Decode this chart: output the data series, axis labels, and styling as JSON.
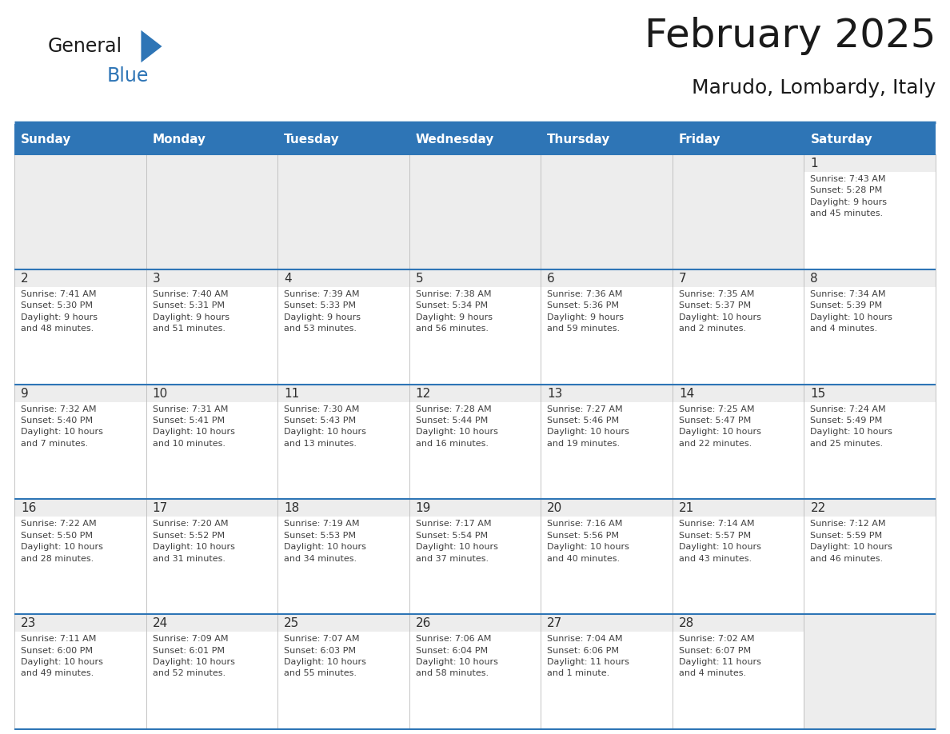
{
  "title": "February 2025",
  "subtitle": "Marudo, Lombardy, Italy",
  "days_of_week": [
    "Sunday",
    "Monday",
    "Tuesday",
    "Wednesday",
    "Thursday",
    "Friday",
    "Saturday"
  ],
  "header_bg": "#2E75B6",
  "header_text": "#FFFFFF",
  "cell_bg_white": "#FFFFFF",
  "cell_bg_gray": "#EDEDED",
  "border_color": "#2E75B6",
  "day_num_color": "#2E2E2E",
  "cell_text_color": "#404040",
  "title_color": "#1A1A1A",
  "subtitle_color": "#1A1A1A",
  "logo_color1": "#1A1A1A",
  "logo_color2": "#2E75B6",
  "logo_triangle_color": "#2E75B6",
  "calendar_data": [
    [
      {
        "day": null,
        "info": ""
      },
      {
        "day": null,
        "info": ""
      },
      {
        "day": null,
        "info": ""
      },
      {
        "day": null,
        "info": ""
      },
      {
        "day": null,
        "info": ""
      },
      {
        "day": null,
        "info": ""
      },
      {
        "day": 1,
        "info": "Sunrise: 7:43 AM\nSunset: 5:28 PM\nDaylight: 9 hours\nand 45 minutes."
      }
    ],
    [
      {
        "day": 2,
        "info": "Sunrise: 7:41 AM\nSunset: 5:30 PM\nDaylight: 9 hours\nand 48 minutes."
      },
      {
        "day": 3,
        "info": "Sunrise: 7:40 AM\nSunset: 5:31 PM\nDaylight: 9 hours\nand 51 minutes."
      },
      {
        "day": 4,
        "info": "Sunrise: 7:39 AM\nSunset: 5:33 PM\nDaylight: 9 hours\nand 53 minutes."
      },
      {
        "day": 5,
        "info": "Sunrise: 7:38 AM\nSunset: 5:34 PM\nDaylight: 9 hours\nand 56 minutes."
      },
      {
        "day": 6,
        "info": "Sunrise: 7:36 AM\nSunset: 5:36 PM\nDaylight: 9 hours\nand 59 minutes."
      },
      {
        "day": 7,
        "info": "Sunrise: 7:35 AM\nSunset: 5:37 PM\nDaylight: 10 hours\nand 2 minutes."
      },
      {
        "day": 8,
        "info": "Sunrise: 7:34 AM\nSunset: 5:39 PM\nDaylight: 10 hours\nand 4 minutes."
      }
    ],
    [
      {
        "day": 9,
        "info": "Sunrise: 7:32 AM\nSunset: 5:40 PM\nDaylight: 10 hours\nand 7 minutes."
      },
      {
        "day": 10,
        "info": "Sunrise: 7:31 AM\nSunset: 5:41 PM\nDaylight: 10 hours\nand 10 minutes."
      },
      {
        "day": 11,
        "info": "Sunrise: 7:30 AM\nSunset: 5:43 PM\nDaylight: 10 hours\nand 13 minutes."
      },
      {
        "day": 12,
        "info": "Sunrise: 7:28 AM\nSunset: 5:44 PM\nDaylight: 10 hours\nand 16 minutes."
      },
      {
        "day": 13,
        "info": "Sunrise: 7:27 AM\nSunset: 5:46 PM\nDaylight: 10 hours\nand 19 minutes."
      },
      {
        "day": 14,
        "info": "Sunrise: 7:25 AM\nSunset: 5:47 PM\nDaylight: 10 hours\nand 22 minutes."
      },
      {
        "day": 15,
        "info": "Sunrise: 7:24 AM\nSunset: 5:49 PM\nDaylight: 10 hours\nand 25 minutes."
      }
    ],
    [
      {
        "day": 16,
        "info": "Sunrise: 7:22 AM\nSunset: 5:50 PM\nDaylight: 10 hours\nand 28 minutes."
      },
      {
        "day": 17,
        "info": "Sunrise: 7:20 AM\nSunset: 5:52 PM\nDaylight: 10 hours\nand 31 minutes."
      },
      {
        "day": 18,
        "info": "Sunrise: 7:19 AM\nSunset: 5:53 PM\nDaylight: 10 hours\nand 34 minutes."
      },
      {
        "day": 19,
        "info": "Sunrise: 7:17 AM\nSunset: 5:54 PM\nDaylight: 10 hours\nand 37 minutes."
      },
      {
        "day": 20,
        "info": "Sunrise: 7:16 AM\nSunset: 5:56 PM\nDaylight: 10 hours\nand 40 minutes."
      },
      {
        "day": 21,
        "info": "Sunrise: 7:14 AM\nSunset: 5:57 PM\nDaylight: 10 hours\nand 43 minutes."
      },
      {
        "day": 22,
        "info": "Sunrise: 7:12 AM\nSunset: 5:59 PM\nDaylight: 10 hours\nand 46 minutes."
      }
    ],
    [
      {
        "day": 23,
        "info": "Sunrise: 7:11 AM\nSunset: 6:00 PM\nDaylight: 10 hours\nand 49 minutes."
      },
      {
        "day": 24,
        "info": "Sunrise: 7:09 AM\nSunset: 6:01 PM\nDaylight: 10 hours\nand 52 minutes."
      },
      {
        "day": 25,
        "info": "Sunrise: 7:07 AM\nSunset: 6:03 PM\nDaylight: 10 hours\nand 55 minutes."
      },
      {
        "day": 26,
        "info": "Sunrise: 7:06 AM\nSunset: 6:04 PM\nDaylight: 10 hours\nand 58 minutes."
      },
      {
        "day": 27,
        "info": "Sunrise: 7:04 AM\nSunset: 6:06 PM\nDaylight: 11 hours\nand 1 minute."
      },
      {
        "day": 28,
        "info": "Sunrise: 7:02 AM\nSunset: 6:07 PM\nDaylight: 11 hours\nand 4 minutes."
      },
      {
        "day": null,
        "info": ""
      }
    ]
  ]
}
